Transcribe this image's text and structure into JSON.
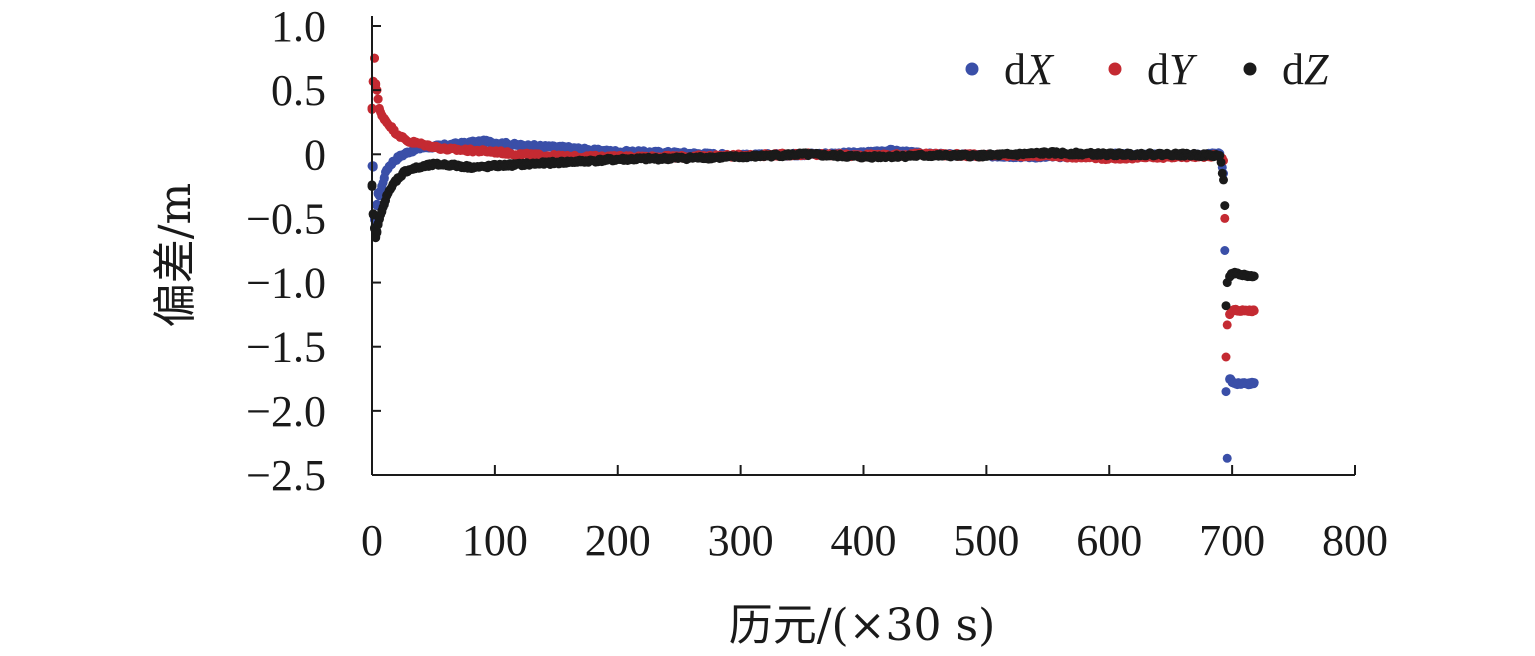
{
  "chart_data": {
    "type": "scatter",
    "xlabel": "历元/(×30 s)",
    "ylabel": "偏差/m",
    "xlim": [
      0,
      800
    ],
    "ylim": [
      -2.5,
      1.0
    ],
    "xticks": [
      "0",
      "100",
      "200",
      "300",
      "400",
      "500",
      "600",
      "700",
      "800"
    ],
    "yticks": [
      "1.0",
      "0.5",
      "0",
      "−0.5",
      "−1.0",
      "−1.5",
      "−2.0",
      "−2.5"
    ],
    "grid": false,
    "legend_position": "top-right",
    "series": [
      {
        "name": "dX",
        "name_prefix": "d",
        "name_var": "X",
        "color": "#3a4fa8",
        "points": [
          [
            1,
            -0.1
          ],
          [
            2,
            -0.5
          ],
          [
            3,
            -0.55
          ],
          [
            4,
            -0.4
          ],
          [
            5,
            -0.3
          ],
          [
            6,
            -0.32
          ],
          [
            8,
            -0.25
          ],
          [
            10,
            -0.18
          ],
          [
            12,
            -0.12
          ],
          [
            15,
            -0.08
          ],
          [
            18,
            -0.05
          ],
          [
            22,
            -0.02
          ],
          [
            26,
            0.0
          ],
          [
            30,
            0.02
          ],
          [
            40,
            0.05
          ],
          [
            50,
            0.06
          ],
          [
            60,
            0.07
          ],
          [
            70,
            0.08
          ],
          [
            80,
            0.09
          ],
          [
            90,
            0.1
          ],
          [
            100,
            0.09
          ],
          [
            120,
            0.07
          ],
          [
            140,
            0.06
          ],
          [
            160,
            0.05
          ],
          [
            180,
            0.03
          ],
          [
            200,
            0.02
          ],
          [
            250,
            0.01
          ],
          [
            300,
            -0.01
          ],
          [
            350,
            0.0
          ],
          [
            400,
            0.01
          ],
          [
            420,
            0.03
          ],
          [
            450,
            0.0
          ],
          [
            500,
            -0.01
          ],
          [
            550,
            -0.02
          ],
          [
            600,
            0.0
          ],
          [
            650,
            -0.01
          ],
          [
            690,
            0.0
          ],
          [
            693,
            -0.15
          ],
          [
            694,
            -0.75
          ],
          [
            695,
            -1.85
          ],
          [
            696,
            -2.37
          ],
          [
            698,
            -1.75
          ],
          [
            700,
            -1.77
          ],
          [
            703,
            -1.79
          ],
          [
            706,
            -1.79
          ],
          [
            710,
            -1.78
          ],
          [
            714,
            -1.79
          ],
          [
            718,
            -1.78
          ]
        ]
      },
      {
        "name": "dY",
        "name_prefix": "d",
        "name_var": "Y",
        "color": "#c42a32",
        "points": [
          [
            0,
            0.35
          ],
          [
            1,
            0.57
          ],
          [
            2,
            0.75
          ],
          [
            3,
            0.55
          ],
          [
            4,
            0.5
          ],
          [
            5,
            0.43
          ],
          [
            6,
            0.35
          ],
          [
            8,
            0.3
          ],
          [
            10,
            0.28
          ],
          [
            12,
            0.25
          ],
          [
            15,
            0.22
          ],
          [
            18,
            0.18
          ],
          [
            22,
            0.15
          ],
          [
            26,
            0.12
          ],
          [
            30,
            0.1
          ],
          [
            40,
            0.08
          ],
          [
            50,
            0.06
          ],
          [
            60,
            0.04
          ],
          [
            80,
            0.03
          ],
          [
            100,
            0.02
          ],
          [
            120,
            0.0
          ],
          [
            140,
            -0.01
          ],
          [
            160,
            -0.02
          ],
          [
            180,
            -0.02
          ],
          [
            200,
            -0.02
          ],
          [
            250,
            -0.02
          ],
          [
            300,
            -0.01
          ],
          [
            350,
            0.0
          ],
          [
            400,
            -0.01
          ],
          [
            450,
            0.0
          ],
          [
            500,
            -0.01
          ],
          [
            550,
            -0.01
          ],
          [
            600,
            -0.03
          ],
          [
            650,
            -0.02
          ],
          [
            690,
            -0.01
          ],
          [
            693,
            -0.05
          ],
          [
            694,
            -0.5
          ],
          [
            695,
            -1.58
          ],
          [
            696,
            -1.33
          ],
          [
            698,
            -1.25
          ],
          [
            700,
            -1.22
          ],
          [
            703,
            -1.21
          ],
          [
            706,
            -1.22
          ],
          [
            710,
            -1.22
          ],
          [
            714,
            -1.22
          ],
          [
            718,
            -1.22
          ]
        ]
      },
      {
        "name": "dZ",
        "name_prefix": "d",
        "name_var": "Z",
        "color": "#1a1a1a",
        "points": [
          [
            0,
            -0.25
          ],
          [
            1,
            -0.47
          ],
          [
            2,
            -0.58
          ],
          [
            3,
            -0.65
          ],
          [
            4,
            -0.6
          ],
          [
            5,
            -0.55
          ],
          [
            6,
            -0.5
          ],
          [
            8,
            -0.45
          ],
          [
            10,
            -0.38
          ],
          [
            12,
            -0.32
          ],
          [
            15,
            -0.28
          ],
          [
            18,
            -0.22
          ],
          [
            22,
            -0.18
          ],
          [
            26,
            -0.14
          ],
          [
            30,
            -0.12
          ],
          [
            40,
            -0.1
          ],
          [
            50,
            -0.08
          ],
          [
            60,
            -0.08
          ],
          [
            70,
            -0.09
          ],
          [
            80,
            -0.1
          ],
          [
            90,
            -0.1
          ],
          [
            100,
            -0.09
          ],
          [
            120,
            -0.08
          ],
          [
            140,
            -0.07
          ],
          [
            160,
            -0.06
          ],
          [
            180,
            -0.05
          ],
          [
            200,
            -0.04
          ],
          [
            250,
            -0.03
          ],
          [
            300,
            -0.02
          ],
          [
            350,
            0.0
          ],
          [
            400,
            -0.02
          ],
          [
            450,
            -0.01
          ],
          [
            500,
            -0.01
          ],
          [
            550,
            0.01
          ],
          [
            600,
            0.0
          ],
          [
            650,
            0.0
          ],
          [
            690,
            -0.01
          ],
          [
            693,
            -0.2
          ],
          [
            694,
            -0.4
          ],
          [
            695,
            -1.18
          ],
          [
            696,
            -1.0
          ],
          [
            698,
            -0.95
          ],
          [
            700,
            -0.93
          ],
          [
            703,
            -0.93
          ],
          [
            706,
            -0.94
          ],
          [
            710,
            -0.94
          ],
          [
            714,
            -0.95
          ],
          [
            718,
            -0.95
          ]
        ]
      }
    ]
  }
}
